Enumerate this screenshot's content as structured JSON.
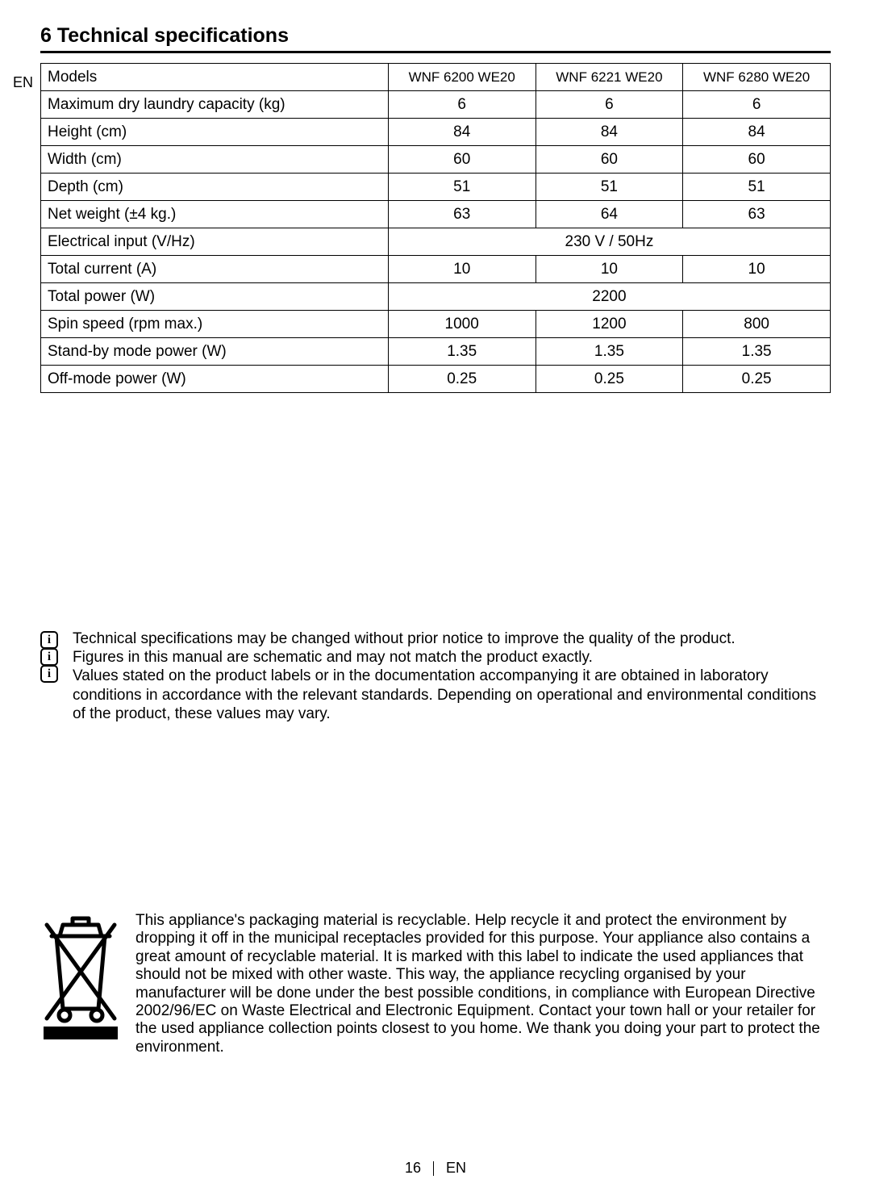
{
  "heading": "6   Technical specifications",
  "lang": "EN",
  "table": {
    "header": [
      "Models",
      "WNF 6200 WE20",
      "WNF 6221 WE20",
      "WNF 6280 WE20"
    ],
    "rows": [
      {
        "label": "Maximum dry laundry capacity (kg)",
        "vals": [
          "6",
          "6",
          "6"
        ]
      },
      {
        "label": "Height (cm)",
        "vals": [
          "84",
          "84",
          "84"
        ]
      },
      {
        "label": "Width (cm)",
        "vals": [
          "60",
          "60",
          "60"
        ]
      },
      {
        "label": "Depth (cm)",
        "vals": [
          "51",
          "51",
          "51"
        ]
      },
      {
        "label": "Net weight (±4 kg.)",
        "vals": [
          "63",
          "64",
          "63"
        ]
      },
      {
        "label": "Electrical input (V/Hz)",
        "merged": "230 V / 50Hz"
      },
      {
        "label": "Total current (A)",
        "vals": [
          "10",
          "10",
          "10"
        ]
      },
      {
        "label": "Total power (W)",
        "merged": "2200"
      },
      {
        "label": "Spin speed (rpm max.)",
        "vals": [
          "1000",
          "1200",
          "800"
        ]
      },
      {
        "label": "Stand-by mode power (W)",
        "vals": [
          "1.35",
          "1.35",
          "1.35"
        ]
      },
      {
        "label": "Off-mode power (W)",
        "vals": [
          "0.25",
          "0.25",
          "0.25"
        ]
      }
    ]
  },
  "notes": [
    "Technical specifications may be changed without prior notice to improve the quality of the product.",
    "Figures in this manual are schematic and may not match the product exactly.",
    "Values stated on the product labels or in the documentation accompanying it are obtained in laboratory conditions in accordance with the relevant standards. Depending on operational and environmental conditions of the product, these values may vary."
  ],
  "recycle_text": "This appliance's packaging material is recyclable. Help recycle it and protect the environment by dropping it off in the municipal receptacles provided for this purpose. Your appliance also contains a great amount of recyclable material. It is marked with this label to indicate the used appliances that should not be mixed with other waste. This way, the appliance recycling organised by your manufacturer will be done under the best possible conditions, in compliance with European Directive 2002/96/EC on Waste Electrical and Electronic Equipment. Contact your town hall or your retailer for the used appliance collection points closest to you home.  We thank you doing your part to protect the environment.",
  "footer": {
    "page": "16",
    "lang": "EN"
  }
}
